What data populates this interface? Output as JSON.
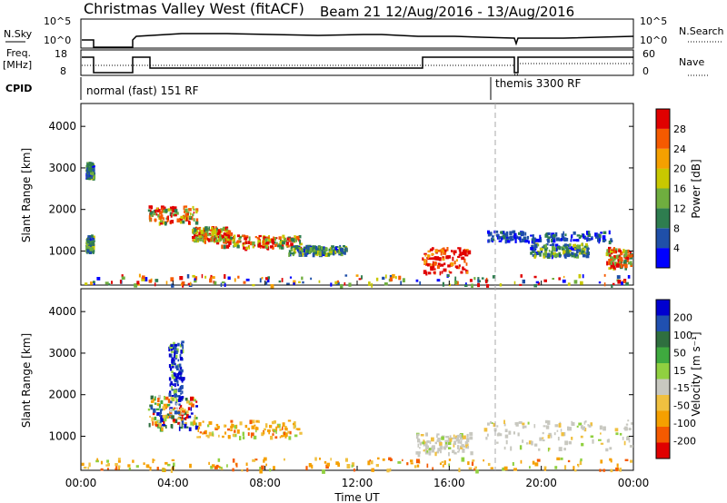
{
  "header": {
    "title": "Christmas Valley West (fitACF)",
    "beam_info": "Beam 21  12/Aug/2016 - 13/Aug/2016"
  },
  "strips": {
    "nsky_label": "N.Sky",
    "nsky_ticks": [
      "10^5",
      "10^0"
    ],
    "nsearch_label": "N.Search",
    "nsearch_ticks": [
      "10^5",
      "10^0"
    ],
    "freq_label_1": "Freq.",
    "freq_label_2": "[MHz]",
    "freq_ticks": [
      "18",
      "8"
    ],
    "nave_label": "Nave",
    "nave_ticks": [
      "60",
      "0"
    ],
    "cpid_label": "CPID",
    "cpid_modes": [
      "normal (fast) 151 RF",
      "themis 3300 RF"
    ]
  },
  "colors": {
    "power_scale": [
      "#0000ff",
      "#1f4fa8",
      "#2e7d4f",
      "#6fae3f",
      "#c8c800",
      "#f5a000",
      "#f55a00",
      "#e00000"
    ],
    "velocity_scale": [
      "#e00000",
      "#f55a00",
      "#f5a000",
      "#f0c040",
      "#c8c8c0",
      "#90d040",
      "#3faa3f",
      "#2f6f3f",
      "#2050b0",
      "#0000d0"
    ]
  },
  "chart_data": [
    {
      "type": "heatmap",
      "title": "Power",
      "ylabel": "Slant Range [km]",
      "xlabel": "Time UT",
      "x_ticks": [
        "00:00",
        "04:00",
        "08:00",
        "12:00",
        "16:00",
        "20:00",
        "00:00"
      ],
      "xlim_hours": [
        0,
        24
      ],
      "y_ticks": [
        1000,
        2000,
        3000,
        4000
      ],
      "ylim_km": [
        180,
        4550
      ],
      "colorbar_label": "Power [dB]",
      "colorbar_ticks": [
        4,
        8,
        12,
        16,
        20,
        24,
        28
      ],
      "regions": [
        {
          "t0": 0.2,
          "t1": 0.5,
          "r0": 1000,
          "r1": 1400,
          "level": "medium"
        },
        {
          "t0": 0.2,
          "t1": 0.5,
          "r0": 2800,
          "r1": 3150,
          "level": "medium"
        },
        {
          "t0": 2.9,
          "t1": 5.0,
          "r0": 1700,
          "r1": 2100,
          "level": "strong"
        },
        {
          "t0": 4.8,
          "t1": 6.5,
          "r0": 1250,
          "r1": 1600,
          "level": "strong"
        },
        {
          "t0": 6.0,
          "t1": 9.5,
          "r0": 1100,
          "r1": 1400,
          "level": "strong"
        },
        {
          "t0": 9.0,
          "t1": 11.5,
          "r0": 950,
          "r1": 1150,
          "level": "medium"
        },
        {
          "t0": 14.8,
          "t1": 16.8,
          "r0": 500,
          "r1": 1100,
          "level": "very_strong"
        },
        {
          "t0": 17.5,
          "t1": 23.0,
          "r0": 1250,
          "r1": 1500,
          "level": "weak"
        },
        {
          "t0": 19.5,
          "t1": 22.0,
          "r0": 900,
          "r1": 1200,
          "level": "medium"
        },
        {
          "t0": 22.8,
          "t1": 24.0,
          "r0": 600,
          "r1": 1100,
          "level": "strong"
        },
        {
          "t0": 0.0,
          "t1": 24.0,
          "r0": 200,
          "r1": 450,
          "level": "mixed"
        }
      ]
    },
    {
      "type": "heatmap",
      "title": "Velocity",
      "ylabel": "Slant Range [km]",
      "xlabel": "Time UT",
      "x_ticks": [
        "00:00",
        "04:00",
        "08:00",
        "12:00",
        "16:00",
        "20:00",
        "00:00"
      ],
      "xlim_hours": [
        0,
        24
      ],
      "y_ticks": [
        1000,
        2000,
        3000,
        4000
      ],
      "ylim_km": [
        180,
        4550
      ],
      "colorbar_label": "Velocity [m s⁻¹]",
      "colorbar_ticks": [
        200,
        100,
        50,
        15,
        -15,
        -50,
        -100,
        -200
      ],
      "regions": [
        {
          "t0": 2.9,
          "t1": 5.0,
          "r0": 1200,
          "r1": 2000,
          "level": "mixed"
        },
        {
          "t0": 3.8,
          "t1": 4.4,
          "r0": 1900,
          "r1": 3300,
          "level": "blue"
        },
        {
          "t0": 5.0,
          "t1": 9.5,
          "r0": 1000,
          "r1": 1400,
          "level": "orange"
        },
        {
          "t0": 14.5,
          "t1": 17.0,
          "r0": 600,
          "r1": 1100,
          "level": "gray"
        },
        {
          "t0": 17.5,
          "t1": 24.0,
          "r0": 700,
          "r1": 1400,
          "level": "gray"
        },
        {
          "t0": 0.0,
          "t1": 24.0,
          "r0": 200,
          "r1": 500,
          "level": "orange"
        }
      ]
    }
  ]
}
